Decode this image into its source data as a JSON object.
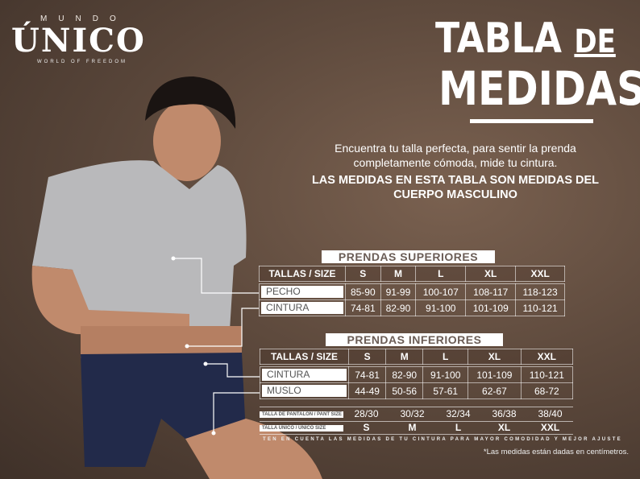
{
  "logo": {
    "top": "MUNDO",
    "main": "ÚNICO",
    "tagline": "WORLD OF FREEDOM"
  },
  "title": {
    "line1": "TABLA",
    "de": "DE",
    "line2": "MEDIDAS"
  },
  "intro": {
    "line1": "Encuentra tu talla perfecta, para sentir la prenda",
    "line2": "completamente cómoda, mide tu cintura.",
    "bold1": "LAS MEDIDAS EN ESTA TABLA SON MEDIDAS DEL",
    "bold2": "CUERPO MASCULINO"
  },
  "upper": {
    "label": "PRENDAS SUPERIORES",
    "header": [
      "TALLAS / SIZE",
      "S",
      "M",
      "L",
      "XL",
      "XXL"
    ],
    "rows": [
      {
        "name": "PECHO",
        "values": [
          "85-90",
          "91-99",
          "100-107",
          "108-117",
          "118-123"
        ]
      },
      {
        "name": "CINTURA",
        "values": [
          "74-81",
          "82-90",
          "91-100",
          "101-109",
          "110-121"
        ]
      }
    ]
  },
  "lower": {
    "label": "PRENDAS INFERIORES",
    "header": [
      "TALLAS / SIZE",
      "S",
      "M",
      "L",
      "XL",
      "XXL"
    ],
    "rows": [
      {
        "name": "CINTURA",
        "values": [
          "74-81",
          "82-90",
          "91-100",
          "101-109",
          "110-121"
        ]
      },
      {
        "name": "MUSLO",
        "values": [
          "44-49",
          "50-56",
          "57-61",
          "62-67",
          "68-72"
        ]
      }
    ],
    "pant": {
      "name": "TALLA DE PANTALÓN / PANT SIZE",
      "values": [
        "28/30",
        "30/32",
        "32/34",
        "36/38",
        "38/40"
      ]
    },
    "unico": {
      "name": "TALLA ÚNICO / UNICO SIZE",
      "values": [
        "S",
        "M",
        "L",
        "XL",
        "XXL"
      ]
    }
  },
  "note": "TEN EN CUENTA LAS MEDIDAS DE TU CINTURA PARA MAYOR COMODIDAD Y MEJOR AJUSTE",
  "footnote": "*Las medidas están dadas en centímetros."
}
